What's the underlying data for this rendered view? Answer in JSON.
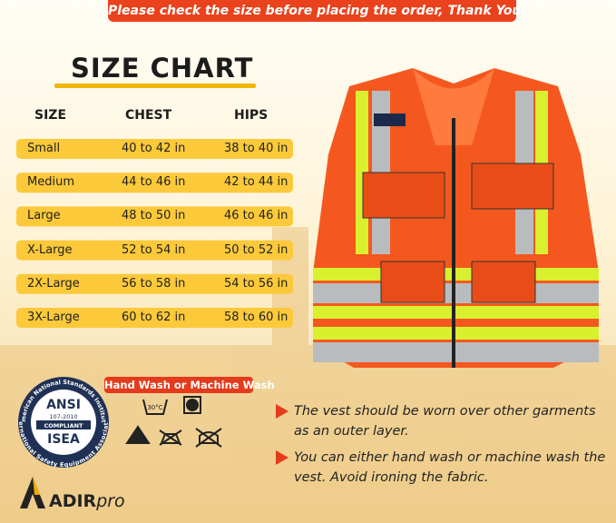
{
  "banner": "Please check the size before placing the order, Thank You!",
  "title": "SIZE CHART",
  "table": {
    "headers": [
      "SIZE",
      "CHEST",
      "HIPS"
    ],
    "rows": [
      [
        "Small",
        "40 to 42 in",
        "38 to 40 in"
      ],
      [
        "Medium",
        "44 to 46 in",
        "42 to 44 in"
      ],
      [
        "Large",
        "48 to 50 in",
        "46 to 46 in"
      ],
      [
        "X-Large",
        "52 to 54 in",
        "50 to 52 in"
      ],
      [
        "2X-Large",
        "56 to 58 in",
        "54 to 56 in"
      ],
      [
        "3X-Large",
        "60 to 62 in",
        "58 to 60 in"
      ]
    ]
  },
  "badge": {
    "top_arc": "American National Standards Institute",
    "bottom_arc": "International Safety Equipment Association",
    "lines": [
      "ANSI",
      "107-2010",
      "COMPLIANT",
      "ISEA"
    ]
  },
  "care": {
    "label": "Hand Wash or Machine Wash",
    "temperature": "30°C"
  },
  "notes": [
    "The vest should be worn over other garments as an outer layer.",
    "You can either hand wash or machine wash the vest. Avoid ironing the fabric."
  ],
  "brand": {
    "name": "ADIR",
    "suffix": "pro"
  }
}
